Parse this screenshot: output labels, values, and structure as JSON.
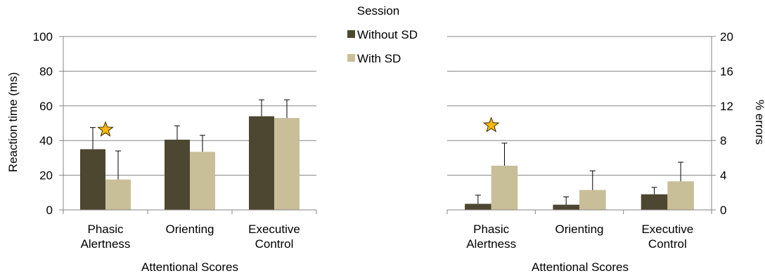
{
  "legend": {
    "title": "Session",
    "items": [
      {
        "label": "Without SD",
        "color": "#4d4630"
      },
      {
        "label": "With SD",
        "color": "#c8bf99"
      }
    ]
  },
  "chart_data": [
    {
      "type": "bar",
      "categories": [
        [
          "Phasic",
          "Alertness"
        ],
        [
          "Orienting"
        ],
        [
          "Executive",
          "Control"
        ]
      ],
      "series": [
        {
          "name": "Without SD",
          "values": [
            35,
            40.5,
            54
          ],
          "errors": [
            12.5,
            8,
            9.5
          ]
        },
        {
          "name": "With SD",
          "values": [
            17.5,
            33.5,
            53
          ],
          "errors": [
            16.5,
            9.5,
            10.5
          ]
        }
      ],
      "xlabel": "Attentional Scores",
      "ylabel": "Reaction time (ms)",
      "ylim": [
        0,
        100
      ],
      "yticks": [
        0,
        20,
        40,
        60,
        80,
        100
      ],
      "grid": true,
      "annotations": [
        {
          "symbol": "star",
          "category_index": 0,
          "value": 47.5
        }
      ]
    },
    {
      "type": "bar",
      "categories": [
        [
          "Phasic",
          "Alertness"
        ],
        [
          "Orienting"
        ],
        [
          "Executive",
          "Control"
        ]
      ],
      "series": [
        {
          "name": "Without SD",
          "values": [
            0.7,
            0.6,
            1.8
          ],
          "errors": [
            1,
            0.9,
            0.8
          ]
        },
        {
          "name": "With SD",
          "values": [
            5.1,
            2.3,
            3.3
          ],
          "errors": [
            2.6,
            2.2,
            2.2
          ]
        }
      ],
      "xlabel": "Attentional Scores",
      "ylabel": "% errors",
      "ylim": [
        0,
        20
      ],
      "yticks": [
        0,
        4,
        8,
        12,
        16,
        20
      ],
      "y_axis_side": "right",
      "grid": true,
      "annotations": [
        {
          "symbol": "star",
          "category_index": 0,
          "value": 10
        }
      ]
    }
  ]
}
